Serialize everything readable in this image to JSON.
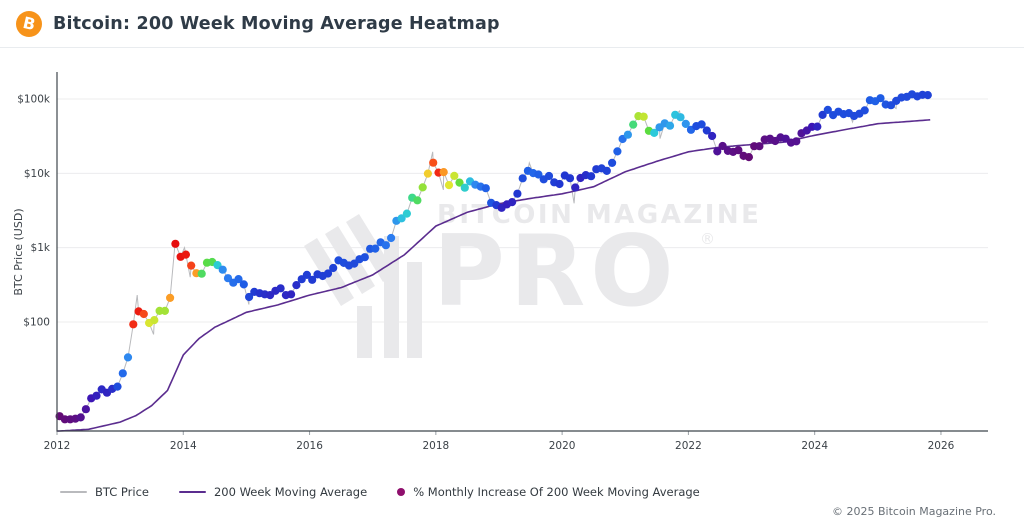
{
  "header": {
    "title": "Bitcoin: 200 Week Moving Average Heatmap",
    "logo_symbol": "B",
    "logo_color": "#f7931a"
  },
  "watermark": {
    "line1": "BITCOIN MAGAZINE",
    "line2": "PRO",
    "reg_mark": "®"
  },
  "footer": {
    "copyright": "© 2025 Bitcoin Magazine Pro."
  },
  "legend": {
    "items": [
      {
        "type": "line",
        "color": "#b9babd",
        "label": "BTC Price"
      },
      {
        "type": "line",
        "color": "#5b2d8f",
        "label": "200 Week Moving Average"
      },
      {
        "type": "dot",
        "color": "#8f0f6d",
        "label": "% Monthly Increase Of 200 Week Moving Average"
      }
    ]
  },
  "chart_data": {
    "type": "scatter_heatmap_line",
    "title": "Bitcoin: 200 Week Moving Average Heatmap",
    "ylabel": "BTC Price (USD)",
    "y_scale": "log",
    "grid": "horizontal-only",
    "y_ticks": [
      {
        "v": 100000,
        "label": "$100k"
      },
      {
        "v": 10000,
        "label": "$10k"
      },
      {
        "v": 1000,
        "label": "$1k"
      },
      {
        "v": 100,
        "label": "$100"
      }
    ],
    "x_ticks": [
      2012,
      2014,
      2016,
      2018,
      2020,
      2022,
      2024,
      2026
    ],
    "x_range": [
      2012,
      2026.7
    ],
    "start_month": "2012-01",
    "end_month": "2025-10",
    "btc_monthly_close": [
      5.4,
      4.9,
      4.9,
      5.0,
      5.2,
      6.7,
      9.4,
      10.2,
      12.4,
      11.2,
      12.6,
      13.5,
      20.4,
      33.4,
      93,
      139,
      128,
      97,
      106,
      141,
      141,
      211,
      1127,
      754,
      806,
      573,
      454,
      446,
      627,
      641,
      582,
      506,
      388,
      338,
      378,
      320,
      217,
      254,
      244,
      236,
      230,
      263,
      284,
      230,
      236,
      314,
      377,
      430,
      369,
      437,
      416,
      449,
      532,
      673,
      624,
      575,
      610,
      700,
      745,
      964,
      970,
      1180,
      1080,
      1350,
      2300,
      2480,
      2875,
      4703,
      4338,
      6468,
      9916,
      13880,
      10221,
      10397,
      6938,
      9240,
      7494,
      6404,
      7780,
      7033,
      6626,
      6318,
      4017,
      3743,
      3437,
      3816,
      4105,
      5320,
      8574,
      10817,
      10085,
      9630,
      8308,
      9199,
      7569,
      7193,
      9350,
      8599,
      6438,
      8658,
      9461,
      9137,
      11351,
      11655,
      10776,
      13797,
      19698,
      29002,
      33114,
      45240,
      58919,
      57750,
      37332,
      35041,
      41553,
      47130,
      43790,
      61319,
      56987,
      46306,
      38483,
      43193,
      45539,
      37714,
      31792,
      19785,
      23307,
      20050,
      19432,
      20490,
      17168,
      16548,
      23139,
      23147,
      28478,
      29268,
      27219,
      30477,
      29230,
      25932,
      26968,
      34668,
      37723,
      42265,
      42580,
      61199,
      71333,
      60637,
      67491,
      62678,
      64619,
      58970,
      63329,
      70215,
      96449,
      93429,
      102405,
      84349,
      82549,
      94207,
      104598,
      107135,
      115758,
      108237,
      114056,
      113000
    ],
    "wma_pct_monthly_increase": [
      0.3,
      0.4,
      0.5,
      0.6,
      0.8,
      1.0,
      1.3,
      1.5,
      1.7,
      1.6,
      1.8,
      2.6,
      3.4,
      4.2,
      13.0,
      13.5,
      12.5,
      9.6,
      9.4,
      8.9,
      8.9,
      11.2,
      14.0,
      13.8,
      13.6,
      12.6,
      11.2,
      7.6,
      7.9,
      7.8,
      6.1,
      4.3,
      3.9,
      3.5,
      3.4,
      3.0,
      2.4,
      2.1,
      1.9,
      1.8,
      1.7,
      1.7,
      1.8,
      1.7,
      1.6,
      1.8,
      2.1,
      2.2,
      2.1,
      2.1,
      2.2,
      2.2,
      2.3,
      2.6,
      2.6,
      2.5,
      2.5,
      2.6,
      2.7,
      2.9,
      3.1,
      3.3,
      3.6,
      3.9,
      4.6,
      5.7,
      6.1,
      7.1,
      7.6,
      8.7,
      10.3,
      12.4,
      13.1,
      11.3,
      9.7,
      9.4,
      8.1,
      6.2,
      5.6,
      4.2,
      3.6,
      3.1,
      2.8,
      2.1,
      1.6,
      1.5,
      1.6,
      2.0,
      2.6,
      3.1,
      3.3,
      3.1,
      2.6,
      2.5,
      2.2,
      2.0,
      2.0,
      2.0,
      1.6,
      1.6,
      1.8,
      2.0,
      2.1,
      2.3,
      2.3,
      2.6,
      3.1,
      3.6,
      4.6,
      7.3,
      9.0,
      9.3,
      8.0,
      6.0,
      4.6,
      4.6,
      5.0,
      5.8,
      5.5,
      4.5,
      3.3,
      2.6,
      2.6,
      2.1,
      1.6,
      0.9,
      0.7,
      0.7,
      0.6,
      0.5,
      0.4,
      0.3,
      0.4,
      0.5,
      0.6,
      0.7,
      0.7,
      0.8,
      0.9,
      0.8,
      0.8,
      0.9,
      1.1,
      1.3,
      1.6,
      2.1,
      2.6,
      2.6,
      2.6,
      2.6,
      2.6,
      2.5,
      2.5,
      2.6,
      3.0,
      3.1,
      3.0,
      2.8,
      2.6,
      2.5,
      2.5,
      2.5,
      2.5,
      2.4,
      2.3,
      2.3
    ],
    "wma_anchors": [
      [
        2012.0,
        3.4
      ],
      [
        2012.5,
        3.6
      ],
      [
        2013.0,
        4.5
      ],
      [
        2013.25,
        5.5
      ],
      [
        2013.5,
        7.5
      ],
      [
        2013.75,
        12
      ],
      [
        2014.0,
        36
      ],
      [
        2014.25,
        60
      ],
      [
        2014.5,
        85
      ],
      [
        2015.0,
        135
      ],
      [
        2015.5,
        170
      ],
      [
        2016.0,
        230
      ],
      [
        2016.5,
        290
      ],
      [
        2017.0,
        430
      ],
      [
        2017.5,
        800
      ],
      [
        2018.0,
        1950
      ],
      [
        2018.5,
        3000
      ],
      [
        2019.0,
        3900
      ],
      [
        2019.5,
        4600
      ],
      [
        2020.0,
        5300
      ],
      [
        2020.5,
        6600
      ],
      [
        2021.0,
        10500
      ],
      [
        2021.5,
        14500
      ],
      [
        2022.0,
        19500
      ],
      [
        2022.5,
        22500
      ],
      [
        2023.0,
        24400
      ],
      [
        2023.5,
        26200
      ],
      [
        2024.0,
        32500
      ],
      [
        2024.5,
        39000
      ],
      [
        2025.0,
        46500
      ],
      [
        2025.83,
        52500
      ]
    ],
    "price_wicks": [
      [
        2013.27,
        230
      ],
      [
        2013.53,
        68
      ],
      [
        2013.87,
        1150
      ],
      [
        2014.02,
        1000
      ],
      [
        2014.11,
        400
      ],
      [
        2015.04,
        172
      ],
      [
        2017.95,
        19500
      ],
      [
        2018.12,
        5990
      ],
      [
        2019.48,
        13800
      ],
      [
        2020.19,
        3950
      ],
      [
        2021.28,
        64800
      ],
      [
        2021.55,
        29300
      ],
      [
        2021.86,
        69000
      ],
      [
        2022.46,
        17700
      ],
      [
        2022.87,
        15500
      ],
      [
        2024.2,
        73700
      ],
      [
        2024.6,
        49100
      ],
      [
        2025.29,
        74500
      ],
      [
        2025.76,
        124500
      ]
    ],
    "colormap_stops": [
      [
        0,
        "#6b0766"
      ],
      [
        0.7,
        "#591089"
      ],
      [
        1.3,
        "#3c16b5"
      ],
      [
        2,
        "#2137d1"
      ],
      [
        3,
        "#1e5ce5"
      ],
      [
        4,
        "#2e80f1"
      ],
      [
        5,
        "#2fa7e9"
      ],
      [
        6,
        "#2ccada"
      ],
      [
        7,
        "#3bd993"
      ],
      [
        8,
        "#5cdc3f"
      ],
      [
        9,
        "#abe336"
      ],
      [
        9.8,
        "#e9e72f"
      ],
      [
        10.8,
        "#fbb32a"
      ],
      [
        11.8,
        "#fb7d20"
      ],
      [
        12.8,
        "#f43217"
      ],
      [
        14,
        "#e60d0d"
      ]
    ],
    "series_colors": {
      "price_line": "#b9babd",
      "wma_line": "#5b2d8f"
    },
    "axis_color": "#3f464c",
    "grid_color": "#ececee",
    "tick_label_color": "#3c4248",
    "watermark_color": "#e9e9eb"
  }
}
